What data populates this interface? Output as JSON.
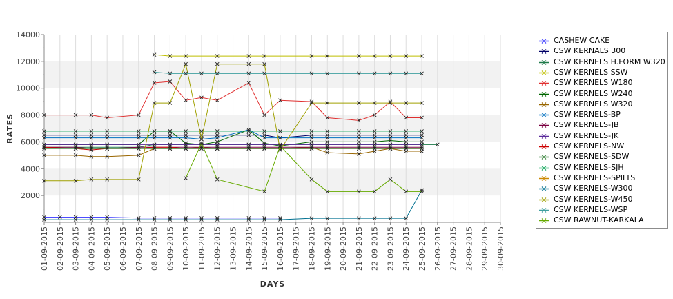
{
  "chart_data": {
    "type": "line",
    "xlabel": "DAYS",
    "ylabel": "RATES",
    "ylim": [
      0,
      14000
    ],
    "yticks": [
      2000,
      4000,
      6000,
      8000,
      10000,
      12000,
      14000
    ],
    "grid": "alternating horizontal bands, vertical gridlines",
    "legend_position": "right",
    "categories": [
      "01-09-2015",
      "02-09-2015",
      "03-09-2015",
      "04-09-2015",
      "05-09-2015",
      "06-09-2015",
      "07-09-2015",
      "08-09-2015",
      "09-09-2015",
      "10-09-2015",
      "11-09-2015",
      "12-09-2015",
      "13-09-2015",
      "14-09-2015",
      "15-09-2015",
      "16-09-2015",
      "17-09-2015",
      "18-09-2015",
      "19-09-2015",
      "20-09-2015",
      "21-09-2015",
      "22-09-2015",
      "23-09-2015",
      "24-09-2015",
      "25-09-2015",
      "26-09-2015",
      "27-09-2015",
      "28-09-2015",
      "29-09-2015",
      "30-09-2015"
    ],
    "series": [
      {
        "name": "CASHEW CAKE",
        "color": "#3333ff",
        "values": [
          380,
          380,
          380,
          380,
          380,
          null,
          320,
          320,
          320,
          320,
          320,
          320,
          null,
          320,
          320,
          320,
          null,
          null,
          null,
          null,
          null,
          null,
          null,
          null,
          null,
          null,
          null,
          null,
          null,
          null
        ]
      },
      {
        "name": "CSW KERNALS 300",
        "color": "#000066",
        "values": [
          6500,
          null,
          6500,
          6500,
          6500,
          null,
          6500,
          6500,
          6500,
          6500,
          6500,
          6500,
          null,
          6500,
          6500,
          6300,
          null,
          6500,
          6500,
          null,
          6500,
          6500,
          6500,
          6500,
          6500,
          null,
          null,
          null,
          null,
          null
        ]
      },
      {
        "name": "CSW KERNELS H.FORM W320",
        "color": "#1f7a4a",
        "values": [
          5600,
          null,
          5600,
          5600,
          5600,
          null,
          5600,
          5800,
          5800,
          5800,
          5800,
          5800,
          null,
          5800,
          5800,
          5800,
          null,
          5800,
          5800,
          null,
          5800,
          5800,
          5800,
          5800,
          5800,
          5800,
          null,
          null,
          null,
          null
        ]
      },
      {
        "name": "CSW KERNELS SSW",
        "color": "#bfbf00",
        "values": [
          null,
          null,
          null,
          null,
          null,
          null,
          null,
          12500,
          12400,
          12400,
          null,
          12400,
          null,
          12400,
          12400,
          null,
          null,
          12400,
          12400,
          null,
          12400,
          12400,
          12400,
          12400,
          12400,
          null,
          null,
          null,
          null,
          null
        ]
      },
      {
        "name": "CSW KERNELS W180",
        "color": "#e03030",
        "values": [
          8000,
          null,
          8000,
          8000,
          7800,
          null,
          8000,
          10400,
          10500,
          9100,
          9300,
          9100,
          null,
          10400,
          8000,
          9100,
          null,
          9000,
          7800,
          null,
          7600,
          8000,
          9000,
          7800,
          7800,
          null,
          null,
          null,
          null,
          null
        ]
      },
      {
        "name": "CSW KERNELS W240",
        "color": "#006600",
        "values": [
          5800,
          null,
          5800,
          5800,
          5800,
          null,
          5800,
          6800,
          6800,
          5900,
          5800,
          6000,
          null,
          6900,
          5900,
          5700,
          null,
          6000,
          6000,
          null,
          6000,
          6000,
          6100,
          6000,
          6000,
          null,
          null,
          null,
          null,
          null
        ]
      },
      {
        "name": "CSW KERNELS W320",
        "color": "#996600",
        "values": [
          5000,
          null,
          5000,
          4900,
          4900,
          null,
          5000,
          5500,
          5500,
          5500,
          5600,
          5500,
          null,
          5500,
          5500,
          5500,
          null,
          5600,
          5200,
          null,
          5100,
          5300,
          5500,
          5300,
          5300,
          null,
          null,
          null,
          null,
          null
        ]
      },
      {
        "name": "CSW KERNELS-BP",
        "color": "#0070c0",
        "values": [
          6300,
          null,
          6300,
          6300,
          6300,
          null,
          6300,
          6300,
          6300,
          6300,
          6200,
          6300,
          null,
          6900,
          6300,
          6300,
          null,
          6300,
          6300,
          null,
          6300,
          6300,
          6300,
          6300,
          6300,
          null,
          null,
          null,
          null,
          null
        ]
      },
      {
        "name": "CSW KERNELS-JB",
        "color": "#7a0040",
        "values": [
          5600,
          null,
          5600,
          5500,
          5500,
          null,
          5600,
          5600,
          5600,
          5600,
          5600,
          5600,
          null,
          5600,
          5600,
          5600,
          null,
          5600,
          5600,
          null,
          5600,
          5600,
          5600,
          5600,
          5600,
          null,
          null,
          null,
          null,
          null
        ]
      },
      {
        "name": "CSW KERNELS-JK",
        "color": "#5a2a9a",
        "values": [
          5800,
          null,
          5800,
          5800,
          5800,
          null,
          5800,
          5800,
          5800,
          5800,
          5800,
          5800,
          null,
          5800,
          5800,
          5800,
          null,
          5800,
          5800,
          null,
          5800,
          5800,
          5800,
          5800,
          5800,
          null,
          null,
          null,
          null,
          null
        ]
      },
      {
        "name": "CSW KERNELS-NW",
        "color": "#cc0000",
        "values": [
          5600,
          null,
          5500,
          5400,
          5500,
          null,
          5500,
          5600,
          5600,
          5500,
          5500,
          5500,
          null,
          5500,
          5500,
          5500,
          null,
          5500,
          5500,
          null,
          5500,
          5500,
          5500,
          5500,
          5500,
          null,
          null,
          null,
          null,
          null
        ]
      },
      {
        "name": "CSW KERNELS-SDW",
        "color": "#2e7d32",
        "values": [
          5500,
          null,
          5500,
          5500,
          5500,
          null,
          5500,
          5500,
          5500,
          5500,
          5500,
          5500,
          null,
          5500,
          5500,
          5500,
          null,
          5500,
          5500,
          null,
          5500,
          5500,
          5500,
          5500,
          5500,
          null,
          null,
          null,
          null,
          null
        ]
      },
      {
        "name": "CSW KERNELS-SJH",
        "color": "#00a050",
        "values": [
          6800,
          null,
          6800,
          6800,
          6800,
          null,
          6800,
          6800,
          6800,
          6800,
          6800,
          6800,
          null,
          6800,
          6800,
          6800,
          null,
          6800,
          6800,
          null,
          6800,
          6800,
          6800,
          6800,
          6800,
          null,
          null,
          null,
          null,
          null
        ]
      },
      {
        "name": "CSW KERNELS-SPILTS",
        "color": "#cc8800",
        "values": [
          null,
          null,
          null,
          null,
          null,
          null,
          null,
          null,
          null,
          null,
          null,
          null,
          null,
          null,
          null,
          null,
          null,
          null,
          null,
          null,
          null,
          null,
          null,
          null,
          null,
          null,
          null,
          null,
          null,
          null
        ]
      },
      {
        "name": "CSW KERNELS-W300",
        "color": "#007090",
        "values": [
          200,
          null,
          200,
          200,
          200,
          null,
          200,
          200,
          200,
          200,
          200,
          200,
          null,
          200,
          200,
          200,
          null,
          300,
          300,
          null,
          300,
          300,
          300,
          300,
          2400,
          null,
          null,
          null,
          null,
          null
        ]
      },
      {
        "name": "CSW KERNELS-W450",
        "color": "#a0a000",
        "values": [
          3100,
          null,
          3100,
          3200,
          3200,
          null,
          3200,
          8900,
          8900,
          11800,
          6200,
          11800,
          null,
          11800,
          11800,
          5400,
          null,
          8900,
          8900,
          null,
          8900,
          8900,
          8900,
          8900,
          8900,
          null,
          null,
          null,
          null,
          null
        ]
      },
      {
        "name": "CSW KERNELS-WSP",
        "color": "#40a0a0",
        "values": [
          null,
          null,
          null,
          null,
          null,
          null,
          null,
          11200,
          11100,
          11100,
          11100,
          11100,
          null,
          11100,
          11100,
          null,
          null,
          11100,
          11100,
          null,
          11100,
          11100,
          11100,
          11100,
          11100,
          null,
          null,
          null,
          null,
          null
        ]
      },
      {
        "name": "CSW RAWNUT-KARKALA",
        "color": "#66aa00",
        "values": [
          null,
          null,
          null,
          null,
          null,
          null,
          null,
          null,
          null,
          3300,
          5900,
          3200,
          null,
          null,
          2300,
          5700,
          null,
          3200,
          2300,
          null,
          2300,
          2300,
          3200,
          2300,
          2300,
          null,
          null,
          null,
          null,
          null
        ]
      }
    ]
  }
}
